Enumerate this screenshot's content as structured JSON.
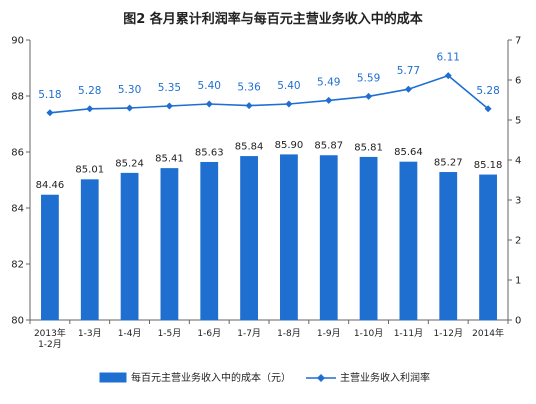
{
  "chart_data": {
    "type": "bar",
    "title": "图2  各月累计利润率与每百元主营业务收入中的成本",
    "categories": [
      [
        "2013年",
        "1-2月"
      ],
      [
        "1-3月"
      ],
      [
        "1-4月"
      ],
      [
        "1-5月"
      ],
      [
        "1-6月"
      ],
      [
        "1-7月"
      ],
      [
        "1-8月"
      ],
      [
        "1-9月"
      ],
      [
        "1-10月"
      ],
      [
        "1-11月"
      ],
      [
        "1-12月"
      ],
      [
        "2014年"
      ]
    ],
    "series": [
      {
        "name": "每百元主营业务收入中的成本（元）",
        "type": "bar",
        "axis": "left",
        "color": "#ffffff",
        "values": [
          84.46,
          85.01,
          85.24,
          85.41,
          85.63,
          85.84,
          85.9,
          85.87,
          85.81,
          85.64,
          85.27,
          85.18
        ],
        "labels": [
          "84.46",
          "85.01",
          "85.24",
          "85.41",
          "85.63",
          "85.84",
          "85.90",
          "85.87",
          "85.81",
          "85.64",
          "85.27",
          "85.18"
        ]
      },
      {
        "name": "主营业务收入利润率",
        "type": "line",
        "axis": "right",
        "color": "#1f6fd1",
        "values": [
          5.18,
          5.28,
          5.3,
          5.35,
          5.4,
          5.36,
          5.4,
          5.49,
          5.59,
          5.77,
          6.11,
          5.28
        ],
        "labels": [
          "5.18",
          "5.28",
          "5.30",
          "5.35",
          "5.40",
          "5.36",
          "5.40",
          "5.49",
          "5.59",
          "5.77",
          "6.11",
          "5.28"
        ]
      }
    ],
    "y_left": {
      "min": 80,
      "max": 90,
      "ticks": [
        "80",
        "82",
        "84",
        "86",
        "88",
        "90"
      ]
    },
    "y_right": {
      "min": 0,
      "max": 7,
      "ticks": [
        "0",
        "1",
        "2",
        "3",
        "4",
        "5",
        "6",
        "7"
      ]
    },
    "grid": false,
    "legend_position": "bottom"
  }
}
